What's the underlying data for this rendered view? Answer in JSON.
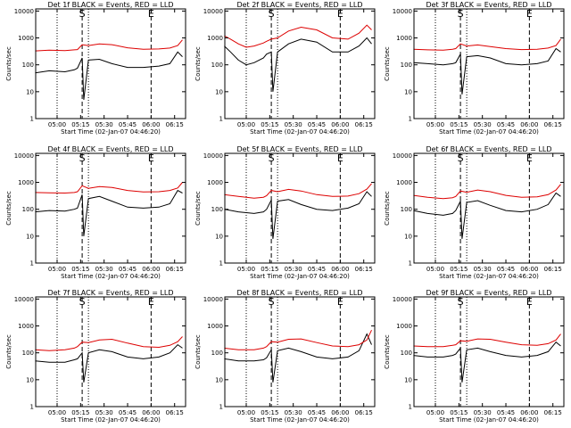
{
  "colors": {
    "events": "#000000",
    "lld": "#dd0000",
    "background": "#ffffff"
  },
  "chart_data": [
    {
      "type": "line",
      "title": "Det 1f BLACK = Events, RED = LLD",
      "ylabel": "Counts/sec",
      "xlabel": "Start Time (02-Jan-07 04:46:20)",
      "x_ticks": [
        "05:00",
        "05:15",
        "05:30",
        "05:45",
        "06:00",
        "06:15"
      ],
      "y_ticks": [
        "1",
        "10",
        "100",
        "1000",
        "10000"
      ],
      "y_scale": "log",
      "ylim": [
        1,
        12000
      ],
      "x_range": [
        "04:46:20",
        "06:22"
      ],
      "markers": [
        "S",
        "E"
      ],
      "series": [
        {
          "name": "Events",
          "x": [
            "04:46",
            "04:55",
            "05:05",
            "05:11",
            "05:13",
            "05:16",
            "05:17",
            "05:20",
            "05:27",
            "05:35",
            "05:45",
            "05:55",
            "06:05",
            "06:12",
            "06:17",
            "06:20"
          ],
          "values": [
            50,
            60,
            55,
            65,
            75,
            180,
            5,
            150,
            160,
            110,
            80,
            80,
            90,
            110,
            300,
            200
          ]
        },
        {
          "name": "LLD",
          "x": [
            "04:46",
            "04:55",
            "05:05",
            "05:11",
            "05:13",
            "05:16",
            "05:20",
            "05:27",
            "05:35",
            "05:45",
            "05:55",
            "06:05",
            "06:12",
            "06:17",
            "06:20"
          ],
          "values": [
            330,
            350,
            340,
            360,
            370,
            560,
            520,
            600,
            560,
            430,
            380,
            390,
            420,
            520,
            850
          ]
        }
      ]
    },
    {
      "type": "line",
      "title": "Det 2f BLACK = Events, RED = LLD",
      "ylabel": "Counts/sec",
      "xlabel": "Start Time (02-Jan-07 04:46:20)",
      "x_ticks": [
        "05:00",
        "05:15",
        "05:30",
        "05:45",
        "06:00",
        "06:15"
      ],
      "y_ticks": [
        "1",
        "10",
        "100",
        "1000",
        "10000"
      ],
      "y_scale": "log",
      "ylim": [
        1,
        12000
      ],
      "x_range": [
        "04:46:20",
        "06:22"
      ],
      "markers": [
        "S",
        "E"
      ],
      "series": [
        {
          "name": "Events",
          "x": [
            "04:46",
            "04:50",
            "04:55",
            "05:00",
            "05:05",
            "05:11",
            "05:13",
            "05:16",
            "05:17",
            "05:20",
            "05:27",
            "05:35",
            "05:45",
            "05:55",
            "06:05",
            "06:12",
            "06:17",
            "06:20"
          ],
          "values": [
            500,
            300,
            150,
            100,
            120,
            180,
            250,
            300,
            10,
            300,
            600,
            900,
            700,
            300,
            300,
            500,
            1000,
            600
          ]
        },
        {
          "name": "LLD",
          "x": [
            "04:46",
            "04:50",
            "04:55",
            "05:00",
            "05:05",
            "05:11",
            "05:13",
            "05:16",
            "05:20",
            "05:27",
            "05:35",
            "05:45",
            "05:55",
            "06:05",
            "06:12",
            "06:17",
            "06:20"
          ],
          "values": [
            1200,
            900,
            600,
            450,
            500,
            650,
            750,
            900,
            1000,
            1800,
            2500,
            2000,
            1000,
            900,
            1500,
            3000,
            2000
          ]
        }
      ]
    },
    {
      "type": "line",
      "title": "Det 3f BLACK = Events, RED = LLD",
      "ylabel": "Counts/sec",
      "xlabel": "Start Time (02-Jan-07 04:46:20)",
      "x_ticks": [
        "05:00",
        "05:15",
        "05:30",
        "05:45",
        "06:00",
        "06:15"
      ],
      "y_ticks": [
        "1",
        "10",
        "100",
        "1000",
        "10000"
      ],
      "y_scale": "log",
      "ylim": [
        1,
        12000
      ],
      "x_range": [
        "04:46:20",
        "06:22"
      ],
      "markers": [
        "S",
        "E"
      ],
      "series": [
        {
          "name": "Events",
          "x": [
            "04:46",
            "04:55",
            "05:05",
            "05:11",
            "05:13",
            "05:16",
            "05:17",
            "05:20",
            "05:27",
            "05:35",
            "05:45",
            "05:55",
            "06:05",
            "06:12",
            "06:17",
            "06:20"
          ],
          "values": [
            120,
            110,
            100,
            110,
            120,
            250,
            8,
            200,
            220,
            180,
            110,
            100,
            110,
            140,
            400,
            300
          ]
        },
        {
          "name": "LLD",
          "x": [
            "04:46",
            "04:55",
            "05:05",
            "05:11",
            "05:13",
            "05:16",
            "05:20",
            "05:27",
            "05:35",
            "05:45",
            "05:55",
            "06:05",
            "06:12",
            "06:17",
            "06:20"
          ],
          "values": [
            380,
            360,
            350,
            380,
            400,
            600,
            500,
            550,
            480,
            400,
            370,
            380,
            420,
            520,
            900
          ]
        }
      ]
    },
    {
      "type": "line",
      "title": "Det 4f BLACK = Events, RED = LLD",
      "ylabel": "Counts/sec",
      "xlabel": "Start Time (02-Jan-07 04:46:20)",
      "x_ticks": [
        "05:00",
        "05:15",
        "05:30",
        "05:45",
        "06:00",
        "06:15"
      ],
      "y_ticks": [
        "1",
        "10",
        "100",
        "1000",
        "10000"
      ],
      "y_scale": "log",
      "ylim": [
        1,
        12000
      ],
      "x_range": [
        "04:46:20",
        "06:22"
      ],
      "markers": [
        "S",
        "E"
      ],
      "series": [
        {
          "name": "Events",
          "x": [
            "04:46",
            "04:55",
            "05:05",
            "05:11",
            "05:13",
            "05:16",
            "05:17",
            "05:20",
            "05:27",
            "05:35",
            "05:45",
            "05:55",
            "06:05",
            "06:12",
            "06:17",
            "06:20"
          ],
          "values": [
            80,
            90,
            85,
            100,
            110,
            350,
            10,
            250,
            300,
            200,
            120,
            110,
            120,
            160,
            500,
            400
          ]
        },
        {
          "name": "LLD",
          "x": [
            "04:46",
            "04:55",
            "05:05",
            "05:11",
            "05:13",
            "05:16",
            "05:20",
            "05:27",
            "05:35",
            "05:45",
            "05:55",
            "06:05",
            "06:12",
            "06:17",
            "06:20"
          ],
          "values": [
            420,
            410,
            400,
            420,
            450,
            750,
            600,
            700,
            650,
            500,
            440,
            450,
            500,
            620,
            1000
          ]
        }
      ]
    },
    {
      "type": "line",
      "title": "Det 5f BLACK = Events, RED = LLD",
      "ylabel": "Counts/sec",
      "xlabel": "Start Time (02-Jan-07 04:46:20)",
      "x_ticks": [
        "05:00",
        "05:15",
        "05:30",
        "05:45",
        "06:00",
        "06:15"
      ],
      "y_ticks": [
        "1",
        "10",
        "100",
        "1000",
        "10000"
      ],
      "y_scale": "log",
      "ylim": [
        1,
        12000
      ],
      "x_range": [
        "04:46:20",
        "06:22"
      ],
      "markers": [
        "S",
        "E"
      ],
      "series": [
        {
          "name": "Events",
          "x": [
            "04:46",
            "04:55",
            "05:05",
            "05:11",
            "05:13",
            "05:16",
            "05:17",
            "05:20",
            "05:27",
            "05:35",
            "05:45",
            "05:55",
            "06:05",
            "06:12",
            "06:17",
            "06:20"
          ],
          "values": [
            100,
            80,
            70,
            80,
            100,
            220,
            8,
            200,
            230,
            150,
            100,
            90,
            110,
            160,
            450,
            300
          ]
        },
        {
          "name": "LLD",
          "x": [
            "04:46",
            "04:55",
            "05:05",
            "05:11",
            "05:13",
            "05:16",
            "05:20",
            "05:27",
            "05:35",
            "05:45",
            "05:55",
            "06:05",
            "06:12",
            "06:17",
            "06:20"
          ],
          "values": [
            350,
            300,
            260,
            280,
            320,
            500,
            450,
            550,
            480,
            350,
            300,
            310,
            380,
            560,
            900
          ]
        }
      ]
    },
    {
      "type": "line",
      "title": "Det 6f BLACK = Events, RED = LLD",
      "ylabel": "Counts/sec",
      "xlabel": "Start Time (02-Jan-07 04:46:20)",
      "x_ticks": [
        "05:00",
        "05:15",
        "05:30",
        "05:45",
        "06:00",
        "06:15"
      ],
      "y_ticks": [
        "1",
        "10",
        "100",
        "1000",
        "10000"
      ],
      "y_scale": "log",
      "ylim": [
        1,
        12000
      ],
      "x_range": [
        "04:46:20",
        "06:22"
      ],
      "markers": [
        "S",
        "E"
      ],
      "series": [
        {
          "name": "Events",
          "x": [
            "04:46",
            "04:55",
            "05:05",
            "05:11",
            "05:13",
            "05:16",
            "05:17",
            "05:20",
            "05:27",
            "05:35",
            "05:45",
            "05:55",
            "06:05",
            "06:12",
            "06:17",
            "06:20"
          ],
          "values": [
            90,
            70,
            60,
            70,
            90,
            200,
            8,
            180,
            210,
            140,
            90,
            80,
            100,
            150,
            400,
            300
          ]
        },
        {
          "name": "LLD",
          "x": [
            "04:46",
            "04:55",
            "05:05",
            "05:11",
            "05:13",
            "05:16",
            "05:20",
            "05:27",
            "05:35",
            "05:45",
            "05:55",
            "06:05",
            "06:12",
            "06:17",
            "06:20"
          ],
          "values": [
            330,
            280,
            250,
            270,
            300,
            480,
            430,
            520,
            450,
            330,
            280,
            290,
            350,
            520,
            850
          ]
        }
      ]
    },
    {
      "type": "line",
      "title": "Det 7f BLACK = Events, RED = LLD",
      "ylabel": "Counts/sec",
      "xlabel": "Start Time (02-Jan-07 04:46:20)",
      "x_ticks": [
        "05:00",
        "05:15",
        "05:30",
        "05:45",
        "06:00",
        "06:15"
      ],
      "y_ticks": [
        "1",
        "10",
        "100",
        "1000",
        "10000"
      ],
      "y_scale": "log",
      "ylim": [
        1,
        12000
      ],
      "x_range": [
        "04:46:20",
        "06:22"
      ],
      "markers": [
        "S",
        "E"
      ],
      "series": [
        {
          "name": "Events",
          "x": [
            "04:46",
            "04:55",
            "05:05",
            "05:11",
            "05:13",
            "05:16",
            "05:17",
            "05:20",
            "05:27",
            "05:35",
            "05:45",
            "05:55",
            "06:05",
            "06:12",
            "06:17",
            "06:20"
          ],
          "values": [
            50,
            45,
            45,
            55,
            60,
            100,
            8,
            100,
            130,
            110,
            70,
            60,
            70,
            100,
            200,
            150
          ]
        },
        {
          "name": "LLD",
          "x": [
            "04:46",
            "04:55",
            "05:05",
            "05:11",
            "05:13",
            "05:16",
            "05:20",
            "05:27",
            "05:35",
            "05:45",
            "05:55",
            "06:05",
            "06:12",
            "06:17",
            "06:20"
          ],
          "values": [
            130,
            120,
            130,
            150,
            170,
            250,
            240,
            300,
            320,
            230,
            170,
            160,
            190,
            260,
            400
          ]
        }
      ]
    },
    {
      "type": "line",
      "title": "Det 8f BLACK = Events, RED = LLD",
      "ylabel": "Counts/sec",
      "xlabel": "Start Time (02-Jan-07 04:46:20)",
      "x_ticks": [
        "05:00",
        "05:15",
        "05:30",
        "05:45",
        "06:00",
        "06:15"
      ],
      "y_ticks": [
        "1",
        "10",
        "100",
        "1000",
        "10000"
      ],
      "y_scale": "log",
      "ylim": [
        1,
        12000
      ],
      "x_range": [
        "04:46:20",
        "06:22"
      ],
      "markers": [
        "S",
        "E"
      ],
      "series": [
        {
          "name": "Events",
          "x": [
            "04:46",
            "04:55",
            "05:05",
            "05:11",
            "05:13",
            "05:16",
            "05:17",
            "05:20",
            "05:27",
            "05:35",
            "05:45",
            "05:55",
            "06:05",
            "06:12",
            "06:17",
            "06:20"
          ],
          "values": [
            60,
            50,
            50,
            55,
            65,
            130,
            8,
            120,
            150,
            110,
            70,
            60,
            70,
            120,
            500,
            200
          ]
        },
        {
          "name": "LLD",
          "x": [
            "04:46",
            "04:55",
            "05:05",
            "05:11",
            "05:13",
            "05:16",
            "05:20",
            "05:27",
            "05:35",
            "05:45",
            "05:55",
            "06:05",
            "06:12",
            "06:17",
            "06:20"
          ],
          "values": [
            150,
            130,
            130,
            150,
            170,
            260,
            250,
            320,
            330,
            240,
            180,
            170,
            200,
            300,
            700
          ]
        }
      ]
    },
    {
      "type": "line",
      "title": "Det 9f BLACK = Events, RED = LLD",
      "ylabel": "Counts/sec",
      "xlabel": "Start Time (02-Jan-07 04:46:20)",
      "x_ticks": [
        "05:00",
        "05:15",
        "05:30",
        "05:45",
        "06:00",
        "06:15"
      ],
      "y_ticks": [
        "1",
        "10",
        "100",
        "1000",
        "10000"
      ],
      "y_scale": "log",
      "ylim": [
        1,
        12000
      ],
      "x_range": [
        "04:46:20",
        "06:22"
      ],
      "markers": [
        "S",
        "E"
      ],
      "series": [
        {
          "name": "Events",
          "x": [
            "04:46",
            "04:55",
            "05:05",
            "05:11",
            "05:13",
            "05:16",
            "05:17",
            "05:20",
            "05:27",
            "05:35",
            "05:45",
            "05:55",
            "06:05",
            "06:12",
            "06:17",
            "06:20"
          ],
          "values": [
            80,
            70,
            70,
            80,
            90,
            150,
            8,
            130,
            150,
            110,
            80,
            70,
            80,
            110,
            250,
            180
          ]
        },
        {
          "name": "LLD",
          "x": [
            "04:46",
            "04:55",
            "05:05",
            "05:11",
            "05:13",
            "05:16",
            "05:20",
            "05:27",
            "05:35",
            "05:45",
            "05:55",
            "06:05",
            "06:12",
            "06:17",
            "06:20"
          ],
          "values": [
            180,
            170,
            170,
            190,
            200,
            280,
            270,
            330,
            320,
            250,
            200,
            190,
            220,
            300,
            500
          ]
        }
      ]
    }
  ]
}
